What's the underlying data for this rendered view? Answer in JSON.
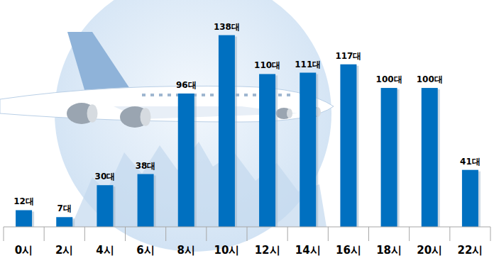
{
  "chart_data": {
    "type": "bar",
    "categories": [
      "0시",
      "2시",
      "4시",
      "6시",
      "8시",
      "10시",
      "12시",
      "14시",
      "16시",
      "18시",
      "20시",
      "22시"
    ],
    "values": [
      12,
      7,
      30,
      38,
      96,
      138,
      110,
      111,
      117,
      100,
      100,
      41
    ],
    "value_labels": [
      "12대",
      "7대",
      "30대",
      "38대",
      "96대",
      "138대",
      "110대",
      "111대",
      "117대",
      "100대",
      "100대",
      "41대"
    ],
    "color": "#0070c0",
    "ylim": [
      0,
      148
    ],
    "data_labels": true,
    "tick_labels": "x",
    "grid": false
  }
}
